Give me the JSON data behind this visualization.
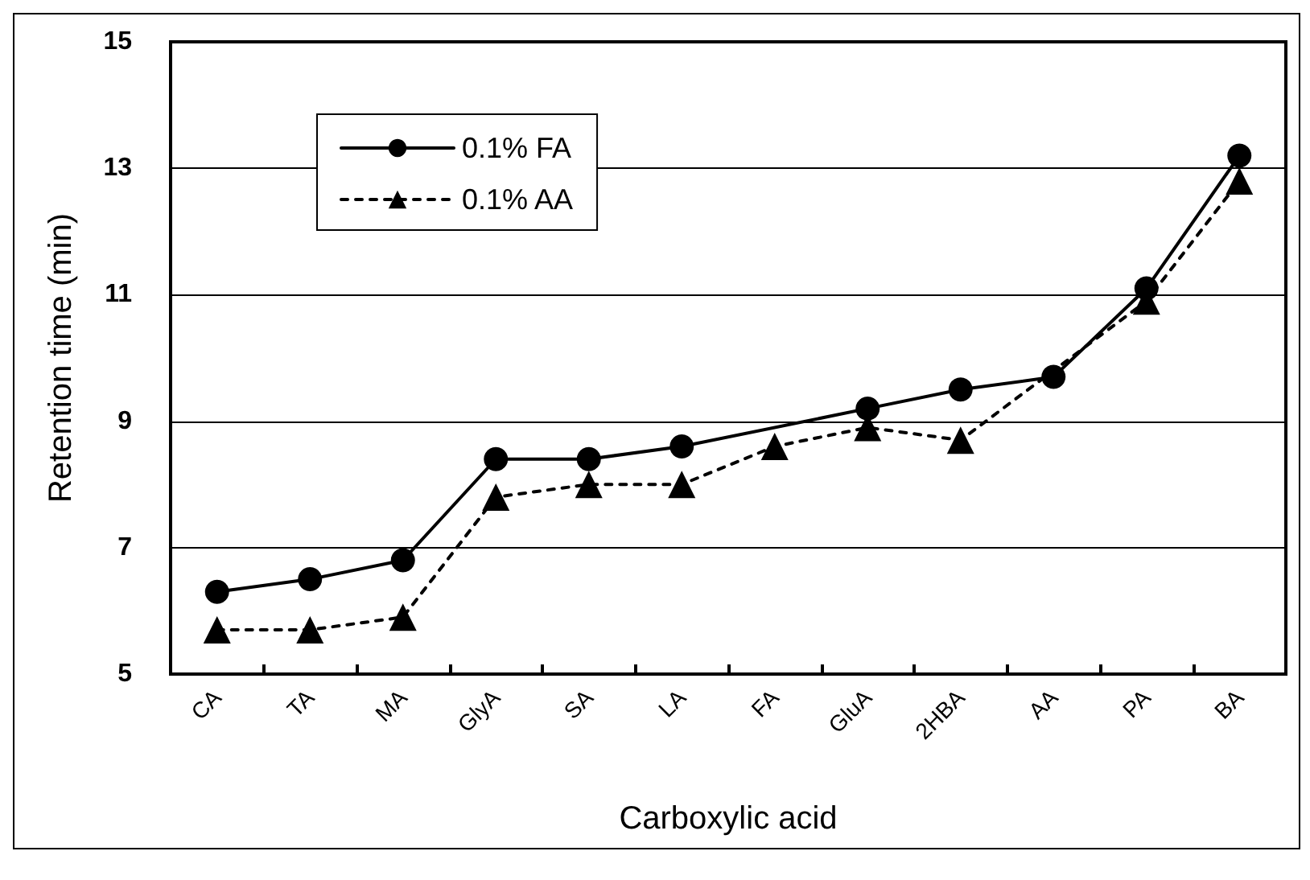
{
  "chart_data": {
    "type": "line",
    "xlabel": "Carboxylic acid",
    "ylabel": "Retention time (min)",
    "categories": [
      "CA",
      "TA",
      "MA",
      "GlyA",
      "SA",
      "LA",
      "FA",
      "GluA",
      "2HBA",
      "AA",
      "PA",
      "BA"
    ],
    "series": [
      {
        "name": "0.1% FA",
        "color": "#000000",
        "marker": "circle",
        "line_style": "solid",
        "values": [
          6.3,
          6.5,
          6.8,
          8.4,
          8.4,
          8.6,
          null,
          9.2,
          9.5,
          9.7,
          11.1,
          13.2
        ]
      },
      {
        "name": "0.1% AA",
        "color": "#000000",
        "marker": "triangle",
        "line_style": "dashed",
        "values": [
          5.7,
          5.7,
          5.9,
          7.8,
          8.0,
          8.0,
          8.6,
          8.9,
          8.7,
          null,
          10.9,
          12.8
        ]
      }
    ],
    "ylim": [
      5,
      15
    ],
    "yticks": [
      5,
      7,
      9,
      11,
      13,
      15
    ],
    "grid": "y",
    "legend": "top left"
  }
}
